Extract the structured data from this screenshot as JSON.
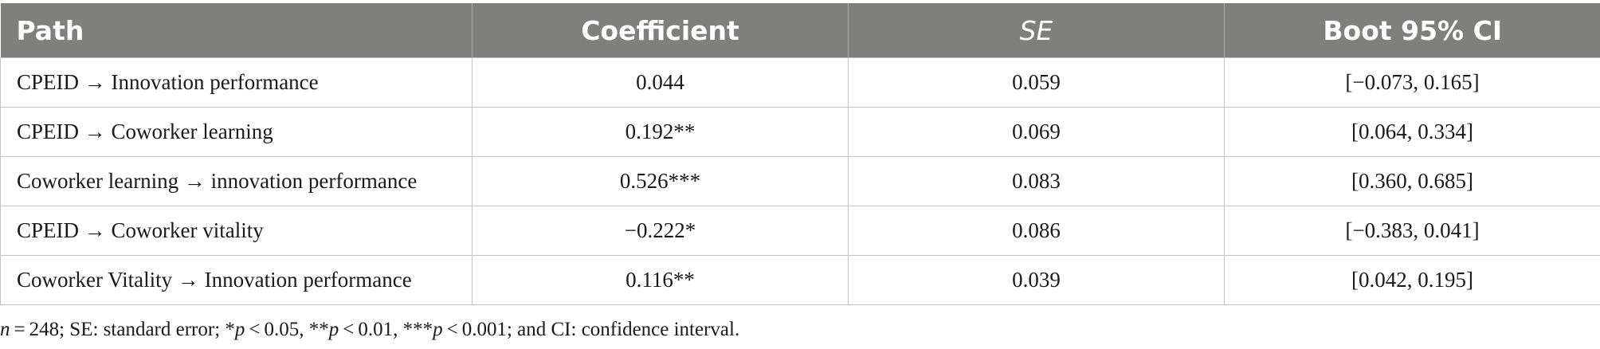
{
  "table": {
    "headers": [
      "Path",
      "Coefficient",
      "SE",
      "Boot 95% CI"
    ],
    "rows": [
      [
        "CPEID → Innovation performance",
        "0.044",
        "0.059",
        "[−0.073, 0.165]"
      ],
      [
        "CPEID → Coworker learning",
        "0.192**",
        "0.069",
        "[0.064, 0.334]"
      ],
      [
        "Coworker learning → innovation performance",
        "0.526***",
        "0.083",
        "[0.360, 0.685]"
      ],
      [
        "CPEID → Coworker vitality",
        "−0.222*",
        "0.086",
        "[−0.383, 0.041]"
      ],
      [
        "Coworker Vitality → Innovation performance",
        "0.116**",
        "0.039",
        "[0.042, 0.195]"
      ]
    ],
    "header_color": "#7f7f7e"
  },
  "footnote": {
    "n_var": "n",
    "n_rest": " = 248; SE: standard error; *",
    "p1_var": "p",
    "p1_rest": " < 0.05, **",
    "p2_var": "p",
    "p2_rest": " < 0.01, ***",
    "p3_var": "p",
    "p3_rest": " < 0.001; and CI: confidence interval."
  }
}
